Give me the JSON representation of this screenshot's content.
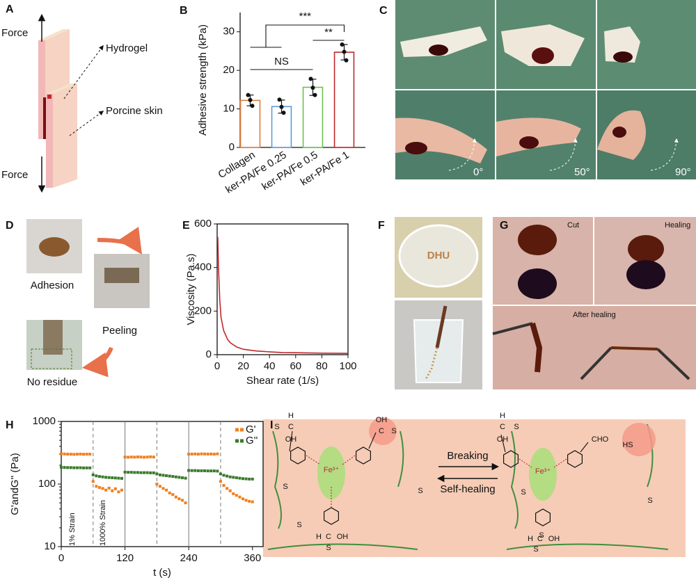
{
  "panels": {
    "A": {
      "letter": "A",
      "force_top": "Force",
      "force_bottom": "Force",
      "hydrogel": "Hydrogel",
      "skin": "Porcine skin"
    },
    "B": {
      "letter": "B"
    },
    "C": {
      "letter": "C",
      "angles": [
        "0°",
        "50°",
        "90°"
      ]
    },
    "D": {
      "letter": "D",
      "steps": [
        "Adhesion",
        "Peeling",
        "No residue"
      ]
    },
    "E": {
      "letter": "E"
    },
    "F": {
      "letter": "F",
      "photo_text": "DHU"
    },
    "G": {
      "letter": "G",
      "cut": "Cut",
      "healing": "Healing",
      "after": "After healing"
    },
    "H": {
      "letter": "H"
    },
    "I": {
      "letter": "I",
      "breaking": "Breaking",
      "self_healing": "Self-healing",
      "fe": "Fe³⁺",
      "oh": "OH",
      "s": "S",
      "h": "H",
      "c": "C",
      "cho": "CHO",
      "hs": "HS"
    }
  },
  "chart_data": [
    {
      "type": "bar",
      "ylabel": "Adhesive strength (kPa)",
      "categories": [
        "Collagen",
        "ker-PA/Fe 0.25",
        "ker-PA/Fe 0.5",
        "ker-PA/Fe 1"
      ],
      "values": [
        12.2,
        10.6,
        15.6,
        24.7
      ],
      "errors": [
        1.4,
        1.7,
        2.1,
        2.0
      ],
      "points": [
        [
          13.6,
          12.3,
          10.8
        ],
        [
          12.4,
          10.5,
          9.0
        ],
        [
          17.8,
          15.5,
          13.6
        ],
        [
          26.7,
          24.8,
          22.6
        ]
      ],
      "colors": [
        "#e07b39",
        "#5b9bd5",
        "#6cc24a",
        "#c0282d"
      ],
      "ylim": [
        0,
        35
      ],
      "yticks": [
        0,
        10,
        20,
        30
      ],
      "annotations": [
        "***",
        "**",
        "NS"
      ]
    },
    {
      "type": "line",
      "xlabel": "Shear rate (1/s)",
      "ylabel": "Viscosity (Pa.s)",
      "x": [
        0.5,
        1,
        2,
        3,
        5,
        8,
        10,
        15,
        20,
        30,
        40,
        50,
        60,
        80,
        100
      ],
      "values": [
        540,
        400,
        250,
        170,
        110,
        70,
        55,
        35,
        25,
        17,
        13,
        10,
        9,
        7,
        6
      ],
      "color": "#c0282d",
      "xlim": [
        0,
        100
      ],
      "ylim": [
        0,
        600
      ],
      "xticks": [
        0,
        20,
        40,
        60,
        80,
        100
      ],
      "yticks": [
        0,
        200,
        400,
        600
      ]
    },
    {
      "type": "scatter",
      "log_y": true,
      "xlabel": "t (s)",
      "ylabel": "G'andG'' (Pa)",
      "x": [
        0,
        6,
        12,
        18,
        24,
        30,
        36,
        42,
        48,
        54,
        60,
        66,
        72,
        78,
        84,
        90,
        96,
        102,
        108,
        114,
        120,
        126,
        132,
        138,
        144,
        150,
        156,
        162,
        168,
        174,
        180,
        186,
        192,
        198,
        204,
        210,
        216,
        222,
        228,
        234,
        240,
        246,
        252,
        258,
        264,
        270,
        276,
        282,
        288,
        294,
        300,
        306,
        312,
        318,
        324,
        330,
        336,
        342,
        348,
        354,
        360
      ],
      "series": [
        {
          "name": "G'",
          "color": "#f07f1e",
          "values": [
            305,
            302,
            300,
            300,
            298,
            300,
            301,
            299,
            300,
            300,
            110,
            92,
            88,
            85,
            80,
            86,
            78,
            84,
            75,
            80,
            270,
            268,
            270,
            269,
            271,
            270,
            268,
            270,
            272,
            270,
            100,
            92,
            85,
            80,
            72,
            68,
            62,
            58,
            55,
            50,
            300,
            301,
            302,
            300,
            303,
            302,
            301,
            302,
            300,
            303,
            110,
            95,
            85,
            78,
            70,
            66,
            62,
            58,
            55,
            53,
            52
          ]
        },
        {
          "name": "G''",
          "color": "#3a7a2a",
          "values": [
            185,
            184,
            183,
            183,
            182,
            182,
            182,
            181,
            181,
            181,
            140,
            135,
            132,
            130,
            128,
            127,
            126,
            125,
            124,
            123,
            155,
            154,
            154,
            153,
            153,
            152,
            152,
            152,
            151,
            151,
            145,
            140,
            138,
            136,
            134,
            132,
            130,
            128,
            126,
            124,
            165,
            164,
            164,
            163,
            163,
            163,
            162,
            162,
            162,
            161,
            145,
            138,
            134,
            130,
            128,
            126,
            124,
            122,
            121,
            120,
            120
          ]
        }
      ],
      "strain_changes": [
        60,
        120,
        180,
        240,
        300
      ],
      "strain_labels": [
        "1% Strain",
        "1000% Strain"
      ],
      "xlim": [
        0,
        380
      ],
      "ylim": [
        10,
        1000
      ],
      "xticks": [
        0,
        120,
        240,
        360
      ],
      "yticks": [
        10,
        100,
        1000
      ]
    }
  ]
}
